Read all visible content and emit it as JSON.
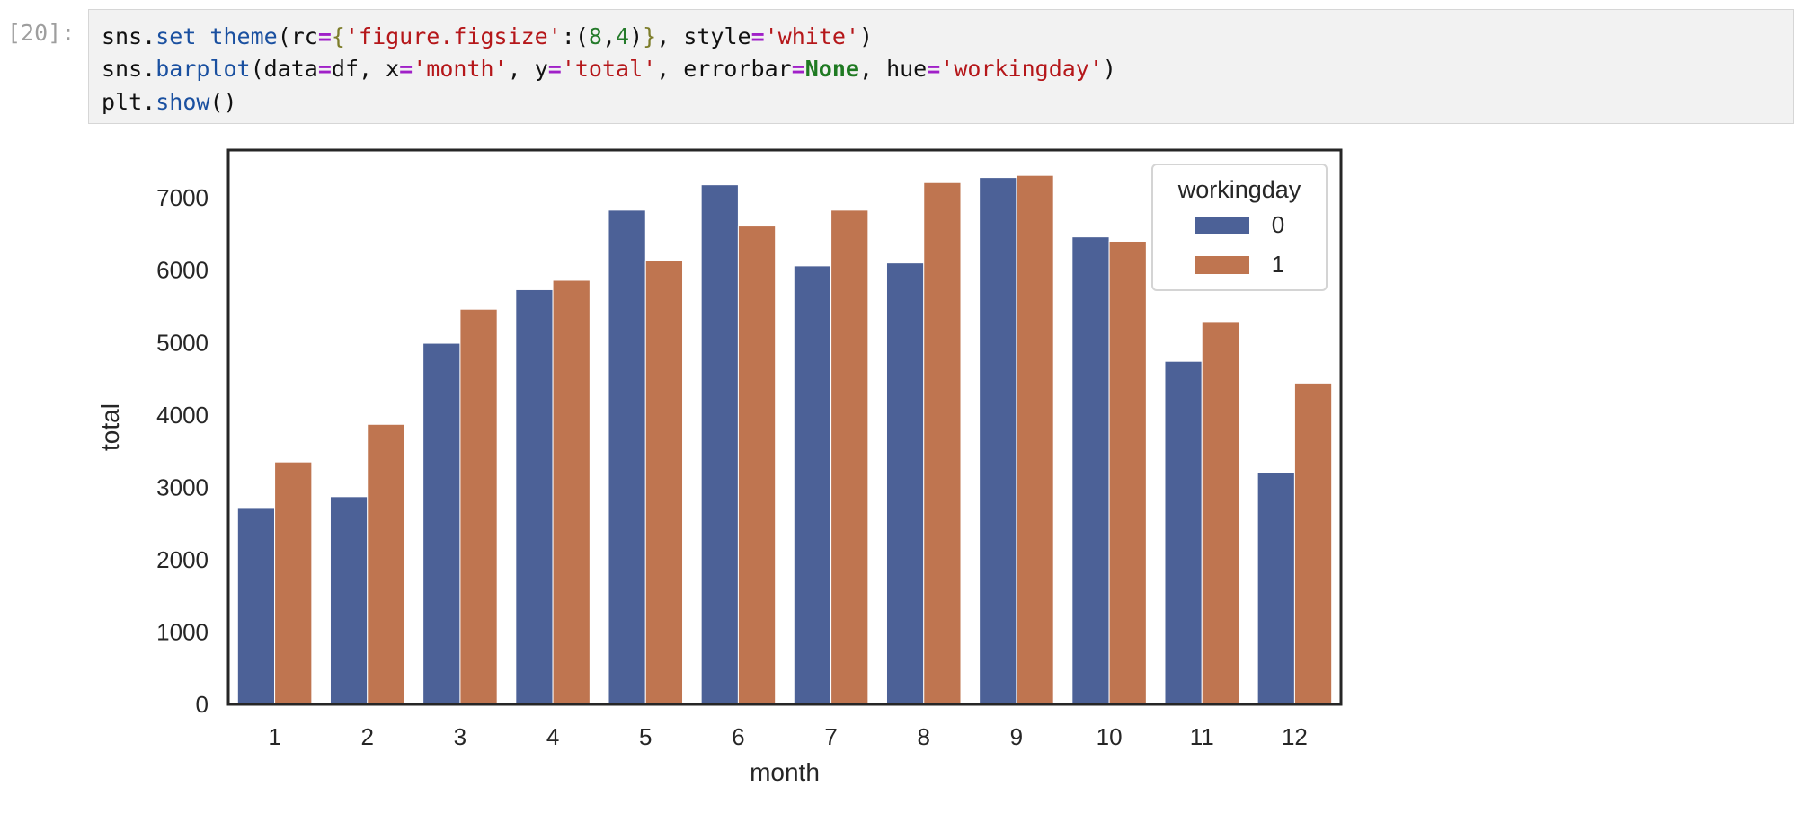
{
  "cell": {
    "prompt": "[20]:",
    "code_lines": [
      [
        {
          "t": "sns",
          "c": ""
        },
        {
          "t": ".",
          "c": ""
        },
        {
          "t": "set_theme",
          "c": "kw"
        },
        {
          "t": "(rc",
          "c": ""
        },
        {
          "t": "=",
          "c": "op"
        },
        {
          "t": "{",
          "c": "brace"
        },
        {
          "t": "'figure.figsize'",
          "c": "str"
        },
        {
          "t": ":(",
          "c": ""
        },
        {
          "t": "8",
          "c": "num"
        },
        {
          "t": ",",
          "c": ""
        },
        {
          "t": "4",
          "c": "num"
        },
        {
          "t": ")",
          "c": ""
        },
        {
          "t": "}",
          "c": "brace"
        },
        {
          "t": ", style",
          "c": ""
        },
        {
          "t": "=",
          "c": "op"
        },
        {
          "t": "'white'",
          "c": "str"
        },
        {
          "t": ")",
          "c": ""
        }
      ],
      [
        {
          "t": "sns",
          "c": ""
        },
        {
          "t": ".",
          "c": ""
        },
        {
          "t": "barplot",
          "c": "kw"
        },
        {
          "t": "(data",
          "c": ""
        },
        {
          "t": "=",
          "c": "op"
        },
        {
          "t": "df, x",
          "c": ""
        },
        {
          "t": "=",
          "c": "op"
        },
        {
          "t": "'month'",
          "c": "str"
        },
        {
          "t": ", y",
          "c": ""
        },
        {
          "t": "=",
          "c": "op"
        },
        {
          "t": "'total'",
          "c": "str"
        },
        {
          "t": ", errorbar",
          "c": ""
        },
        {
          "t": "=",
          "c": "op"
        },
        {
          "t": "None",
          "c": "bool"
        },
        {
          "t": ", hue",
          "c": ""
        },
        {
          "t": "=",
          "c": "op"
        },
        {
          "t": "'workingday'",
          "c": "str"
        },
        {
          "t": ")",
          "c": ""
        }
      ],
      [
        {
          "t": "plt",
          "c": ""
        },
        {
          "t": ".",
          "c": ""
        },
        {
          "t": "show",
          "c": "kw"
        },
        {
          "t": "()",
          "c": ""
        }
      ]
    ]
  },
  "chart_data": {
    "type": "bar",
    "categories": [
      "1",
      "2",
      "3",
      "4",
      "5",
      "6",
      "7",
      "8",
      "9",
      "10",
      "11",
      "12"
    ],
    "series": [
      {
        "name": "0",
        "color": "#4c6197",
        "values": [
          2720,
          2870,
          4990,
          5730,
          6830,
          7180,
          6060,
          6100,
          7280,
          6460,
          4740,
          3200
        ]
      },
      {
        "name": "1",
        "color": "#bf7550",
        "values": [
          3350,
          3870,
          5460,
          5860,
          6130,
          6610,
          6830,
          7210,
          7310,
          6400,
          5290,
          4440
        ]
      }
    ],
    "xlabel": "month",
    "ylabel": "total",
    "yticks": [
      0,
      1000,
      2000,
      3000,
      4000,
      5000,
      6000,
      7000
    ],
    "ylim": [
      0,
      7660
    ],
    "legend_title": "workingday",
    "legend_position": "top-right",
    "grid": false
  }
}
